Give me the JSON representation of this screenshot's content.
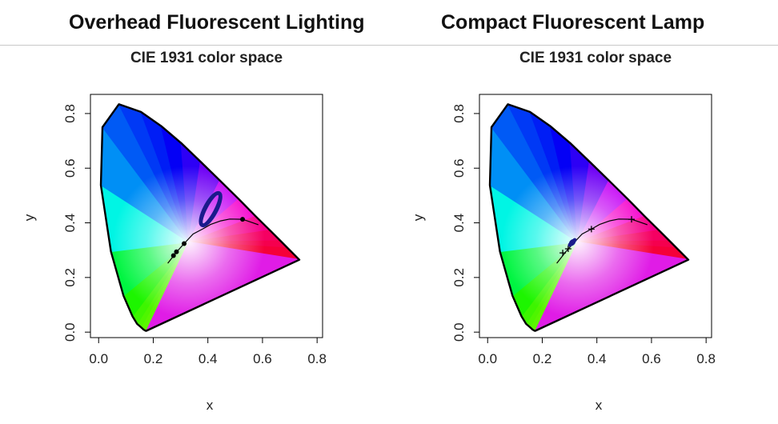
{
  "panels": [
    {
      "heading": "Overhead Fluorescent Lighting",
      "chart_title": "CIE 1931 color space",
      "xlabel": "x",
      "ylabel": "y"
    },
    {
      "heading": "Compact Fluorescent Lamp",
      "chart_title": "CIE 1931 color space",
      "xlabel": "x",
      "ylabel": "y"
    }
  ],
  "chart_data": [
    {
      "type": "scatter",
      "title": "CIE 1931 color space",
      "xlabel": "x",
      "ylabel": "y",
      "xlim": [
        -0.03,
        0.82
      ],
      "ylim": [
        -0.02,
        0.87
      ],
      "xticks": [
        0.0,
        0.2,
        0.4,
        0.6,
        0.8
      ],
      "yticks": [
        0.0,
        0.2,
        0.4,
        0.6,
        0.8
      ],
      "xtick_labels": [
        "0.0",
        "0.2",
        "0.4",
        "0.6",
        "0.8"
      ],
      "ytick_labels": [
        "0.0",
        "0.2",
        "0.4",
        "0.6",
        "0.8"
      ],
      "spectral_locus": [
        [
          0.175,
          0.005
        ],
        [
          0.172,
          0.005
        ],
        [
          0.165,
          0.009
        ],
        [
          0.155,
          0.018
        ],
        [
          0.141,
          0.03
        ],
        [
          0.124,
          0.058
        ],
        [
          0.091,
          0.133
        ],
        [
          0.045,
          0.295
        ],
        [
          0.008,
          0.538
        ],
        [
          0.014,
          0.75
        ],
        [
          0.074,
          0.834
        ],
        [
          0.155,
          0.806
        ],
        [
          0.229,
          0.754
        ],
        [
          0.302,
          0.692
        ],
        [
          0.373,
          0.624
        ],
        [
          0.444,
          0.555
        ],
        [
          0.513,
          0.487
        ],
        [
          0.575,
          0.424
        ],
        [
          0.627,
          0.373
        ],
        [
          0.666,
          0.334
        ],
        [
          0.692,
          0.308
        ],
        [
          0.735,
          0.265
        ]
      ],
      "planckian_locus": [
        [
          0.253,
          0.252
        ],
        [
          0.265,
          0.267
        ],
        [
          0.285,
          0.293
        ],
        [
          0.313,
          0.324
        ],
        [
          0.346,
          0.359
        ],
        [
          0.38,
          0.377
        ],
        [
          0.41,
          0.394
        ],
        [
          0.447,
          0.407
        ],
        [
          0.48,
          0.414
        ],
        [
          0.527,
          0.413
        ],
        [
          0.56,
          0.402
        ],
        [
          0.585,
          0.393
        ]
      ],
      "locus_markers": [
        [
          0.274,
          0.28
        ],
        [
          0.285,
          0.294
        ],
        [
          0.313,
          0.324
        ],
        [
          0.527,
          0.413
        ]
      ],
      "measurements": {
        "color": "#1a1a8c",
        "center": [
          0.41,
          0.45
        ],
        "points_hint": "elongated loop from (0.38,0.39) to (0.45,0.52)"
      }
    },
    {
      "type": "scatter",
      "title": "CIE 1931 color space",
      "xlabel": "x",
      "ylabel": "y",
      "xlim": [
        -0.03,
        0.82
      ],
      "ylim": [
        -0.02,
        0.87
      ],
      "xticks": [
        0.0,
        0.2,
        0.4,
        0.6,
        0.8
      ],
      "yticks": [
        0.0,
        0.2,
        0.4,
        0.6,
        0.8
      ],
      "xtick_labels": [
        "0.0",
        "0.2",
        "0.4",
        "0.6",
        "0.8"
      ],
      "ytick_labels": [
        "0.0",
        "0.2",
        "0.4",
        "0.6",
        "0.8"
      ],
      "spectral_locus": [
        [
          0.175,
          0.005
        ],
        [
          0.172,
          0.005
        ],
        [
          0.165,
          0.009
        ],
        [
          0.155,
          0.018
        ],
        [
          0.141,
          0.03
        ],
        [
          0.124,
          0.058
        ],
        [
          0.091,
          0.133
        ],
        [
          0.045,
          0.295
        ],
        [
          0.008,
          0.538
        ],
        [
          0.014,
          0.75
        ],
        [
          0.074,
          0.834
        ],
        [
          0.155,
          0.806
        ],
        [
          0.229,
          0.754
        ],
        [
          0.302,
          0.692
        ],
        [
          0.373,
          0.624
        ],
        [
          0.444,
          0.555
        ],
        [
          0.513,
          0.487
        ],
        [
          0.575,
          0.424
        ],
        [
          0.627,
          0.373
        ],
        [
          0.666,
          0.334
        ],
        [
          0.692,
          0.308
        ],
        [
          0.735,
          0.265
        ]
      ],
      "planckian_locus": [
        [
          0.253,
          0.252
        ],
        [
          0.265,
          0.267
        ],
        [
          0.285,
          0.293
        ],
        [
          0.313,
          0.324
        ],
        [
          0.346,
          0.359
        ],
        [
          0.38,
          0.377
        ],
        [
          0.41,
          0.394
        ],
        [
          0.447,
          0.407
        ],
        [
          0.48,
          0.414
        ],
        [
          0.527,
          0.413
        ],
        [
          0.56,
          0.402
        ],
        [
          0.585,
          0.393
        ]
      ],
      "locus_markers": [
        [
          0.275,
          0.29
        ],
        [
          0.295,
          0.305
        ],
        [
          0.38,
          0.377
        ],
        [
          0.527,
          0.413
        ]
      ],
      "measurements": {
        "color": "#1a1a8c",
        "center": [
          0.31,
          0.328
        ],
        "points_hint": "tight cluster near (0.31,0.33)"
      }
    }
  ]
}
